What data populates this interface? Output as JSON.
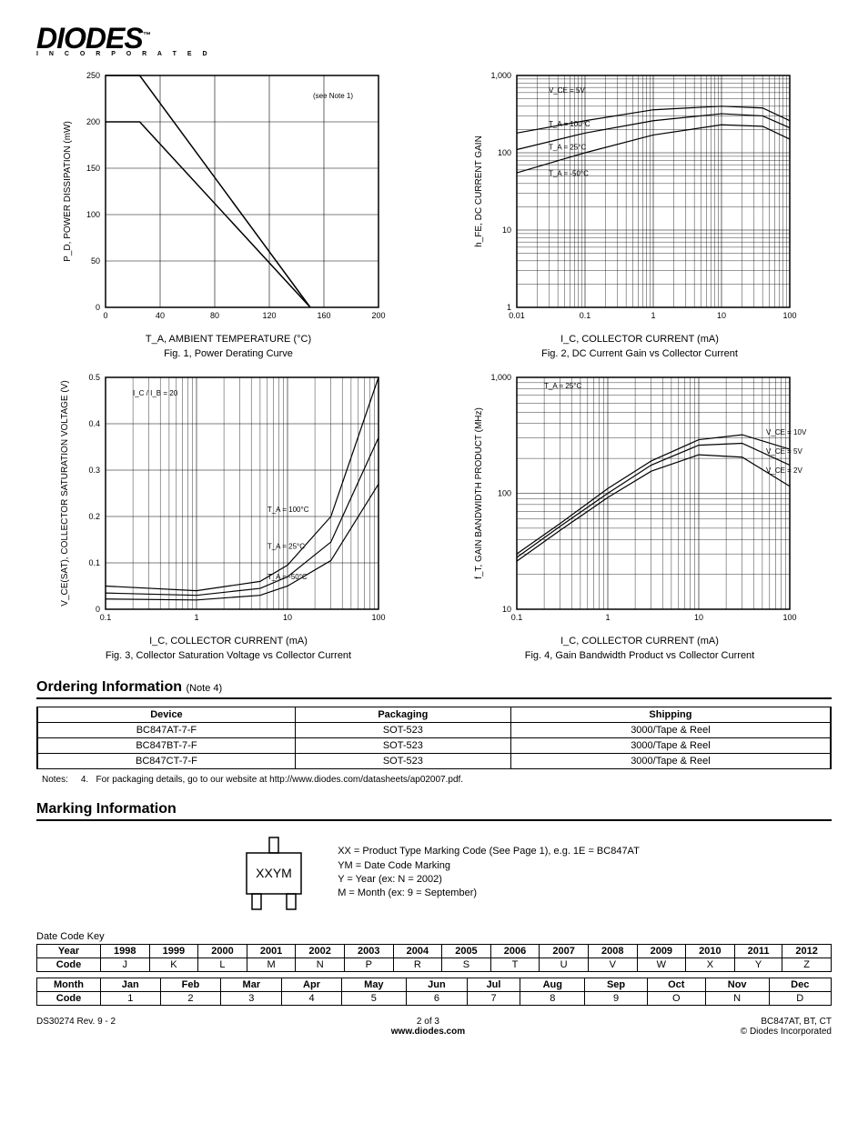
{
  "logo": {
    "main": "DIODES",
    "sub": "I N C O R P O R A T E D",
    "tm": "™"
  },
  "fig1": {
    "type": "line",
    "title": "Fig. 1, Power Derating Curve",
    "xlabel": "T_A, AMBIENT TEMPERATURE (°C)",
    "ylabel": "P_D, POWER DISSIPATION (mW)",
    "xlim": [
      0,
      200
    ],
    "ylim": [
      0,
      250
    ],
    "xticks": [
      0,
      40,
      80,
      120,
      160,
      200
    ],
    "yticks": [
      0,
      50,
      100,
      150,
      200,
      250
    ],
    "note": "(see Note 1)",
    "series": [
      {
        "points": [
          [
            0,
            250
          ],
          [
            25,
            250
          ],
          [
            150,
            0
          ]
        ],
        "color": "#000000",
        "width": 1.5
      },
      {
        "points": [
          [
            0,
            200
          ],
          [
            25,
            200
          ],
          [
            150,
            0
          ]
        ],
        "color": "#000000",
        "width": 1.5
      }
    ],
    "background_color": "#ffffff",
    "grid_color": "#000000"
  },
  "fig2": {
    "type": "loglog",
    "title": "Fig. 2, DC Current Gain vs Collector Current",
    "xlabel": "I_C, COLLECTOR CURRENT (mA)",
    "ylabel": "h_FE, DC CURRENT GAIN",
    "xlim": [
      0.01,
      100
    ],
    "ylim": [
      1,
      1000
    ],
    "xticks": [
      0.01,
      0.1,
      1.0,
      10,
      100
    ],
    "yticks": [
      1,
      10,
      100,
      1000
    ],
    "annotations": [
      "V_CE = 5V",
      "T_A = 100°C",
      "T_A = 25°C",
      "T_A = -50°C"
    ],
    "series": [
      {
        "label": "100C",
        "points": [
          [
            0.01,
            180
          ],
          [
            0.1,
            260
          ],
          [
            1,
            360
          ],
          [
            10,
            400
          ],
          [
            40,
            380
          ],
          [
            100,
            260
          ]
        ],
        "color": "#000",
        "width": 1.2
      },
      {
        "label": "25C",
        "points": [
          [
            0.01,
            110
          ],
          [
            0.1,
            180
          ],
          [
            1,
            260
          ],
          [
            10,
            320
          ],
          [
            40,
            300
          ],
          [
            100,
            210
          ]
        ],
        "color": "#000",
        "width": 1.2
      },
      {
        "label": "-50C",
        "points": [
          [
            0.01,
            55
          ],
          [
            0.1,
            100
          ],
          [
            1,
            170
          ],
          [
            10,
            230
          ],
          [
            40,
            220
          ],
          [
            100,
            150
          ]
        ],
        "color": "#000",
        "width": 1.2
      }
    ],
    "background_color": "#ffffff"
  },
  "fig3": {
    "type": "logx",
    "title": "Fig. 3,  Collector Saturation Voltage vs Collector Current",
    "xlabel": "I_C, COLLECTOR CURRENT (mA)",
    "ylabel": "V_CE(SAT), COLLECTOR SATURATION VOLTAGE (V)",
    "xlim": [
      0.1,
      100
    ],
    "ylim": [
      0,
      0.5
    ],
    "xticks": [
      0.1,
      1.0,
      10,
      100
    ],
    "yticks": [
      0,
      0.1,
      0.2,
      0.3,
      0.4,
      0.5
    ],
    "cond": "I_C / I_B = 20",
    "annotations": [
      "T_A = 100°C",
      "T_A = 25°C",
      "T_A = -50°C"
    ],
    "series": [
      {
        "label": "100C",
        "points": [
          [
            0.1,
            0.05
          ],
          [
            1,
            0.04
          ],
          [
            5,
            0.06
          ],
          [
            10,
            0.095
          ],
          [
            30,
            0.2
          ],
          [
            100,
            0.5
          ]
        ],
        "color": "#000",
        "width": 1.2
      },
      {
        "label": "25C",
        "points": [
          [
            0.1,
            0.035
          ],
          [
            1,
            0.03
          ],
          [
            5,
            0.045
          ],
          [
            10,
            0.07
          ],
          [
            30,
            0.145
          ],
          [
            100,
            0.37
          ]
        ],
        "color": "#000",
        "width": 1.2
      },
      {
        "label": "-50C",
        "points": [
          [
            0.1,
            0.022
          ],
          [
            1,
            0.02
          ],
          [
            5,
            0.03
          ],
          [
            10,
            0.05
          ],
          [
            30,
            0.105
          ],
          [
            100,
            0.27
          ]
        ],
        "color": "#000",
        "width": 1.2
      }
    ],
    "background_color": "#ffffff"
  },
  "fig4": {
    "type": "loglog",
    "title": "Fig. 4, Gain Bandwidth Product vs Collector Current",
    "xlabel": "I_C, COLLECTOR CURRENT (mA)",
    "ylabel": "f_T, GAIN BANDWIDTH PRODUCT (MHz)",
    "xlim": [
      0.1,
      100
    ],
    "ylim": [
      10,
      1000
    ],
    "xticks": [
      0.1,
      1.0,
      10,
      100
    ],
    "yticks": [
      10,
      100,
      1000
    ],
    "cond": "T_A = 25°C",
    "annotations": [
      "V_CE = 10V",
      "V_CE = 5V",
      "V_CE = 2V"
    ],
    "series": [
      {
        "label": "10V",
        "points": [
          [
            0.1,
            30
          ],
          [
            0.3,
            55
          ],
          [
            1,
            110
          ],
          [
            3,
            190
          ],
          [
            10,
            290
          ],
          [
            30,
            320
          ],
          [
            100,
            240
          ]
        ],
        "color": "#000",
        "width": 1.2
      },
      {
        "label": "5V",
        "points": [
          [
            0.1,
            28
          ],
          [
            0.3,
            52
          ],
          [
            1,
            100
          ],
          [
            3,
            175
          ],
          [
            10,
            260
          ],
          [
            30,
            270
          ],
          [
            100,
            175
          ]
        ],
        "color": "#000",
        "width": 1.2
      },
      {
        "label": "2V",
        "points": [
          [
            0.1,
            26
          ],
          [
            0.3,
            48
          ],
          [
            1,
            92
          ],
          [
            3,
            155
          ],
          [
            10,
            215
          ],
          [
            30,
            205
          ],
          [
            100,
            115
          ]
        ],
        "color": "#000",
        "width": 1.2
      }
    ],
    "background_color": "#ffffff"
  },
  "ordering": {
    "heading": "Ordering Information",
    "note_ref": "(Note 4)",
    "columns": [
      "Device",
      "Packaging",
      "Shipping"
    ],
    "rows": [
      [
        "BC847AT-7-F",
        "SOT-523",
        "3000/Tape & Reel"
      ],
      [
        "BC847BT-7-F",
        "SOT-523",
        "3000/Tape & Reel"
      ],
      [
        "BC847CT-7-F",
        "SOT-523",
        "3000/Tape & Reel"
      ]
    ],
    "note_label": "Notes:",
    "note_num": "4.",
    "note_text": "For packaging details, go to our website at http://www.diodes.com/datasheets/ap02007.pdf."
  },
  "marking": {
    "heading": "Marking Information",
    "package_text": "XXYM",
    "desc": [
      "XX = Product Type Marking Code (See Page 1), e.g. 1E = BC847AT",
      "YM = Date Code Marking",
      "Y = Year (ex: N = 2002)",
      "M = Month (ex: 9 = September)"
    ],
    "datekey_label": "Date Code Key",
    "year_table": {
      "rowheads": [
        "Year",
        "Code"
      ],
      "cols": [
        "1998",
        "1999",
        "2000",
        "2001",
        "2002",
        "2003",
        "2004",
        "2005",
        "2006",
        "2007",
        "2008",
        "2009",
        "2010",
        "2011",
        "2012"
      ],
      "codes": [
        "J",
        "K",
        "L",
        "M",
        "N",
        "P",
        "R",
        "S",
        "T",
        "U",
        "V",
        "W",
        "X",
        "Y",
        "Z"
      ]
    },
    "month_table": {
      "rowheads": [
        "Month",
        "Code"
      ],
      "cols": [
        "Jan",
        "Feb",
        "Mar",
        "Apr",
        "May",
        "Jun",
        "Jul",
        "Aug",
        "Sep",
        "Oct",
        "Nov",
        "Dec"
      ],
      "codes": [
        "1",
        "2",
        "3",
        "4",
        "5",
        "6",
        "7",
        "8",
        "9",
        "O",
        "N",
        "D"
      ]
    }
  },
  "footer": {
    "left": "DS30274 Rev. 9 - 2",
    "center_page": "2 of 3",
    "center_url": "www.diodes.com",
    "right1": "BC847AT, BT, CT",
    "right2": "© Diodes Incorporated"
  }
}
